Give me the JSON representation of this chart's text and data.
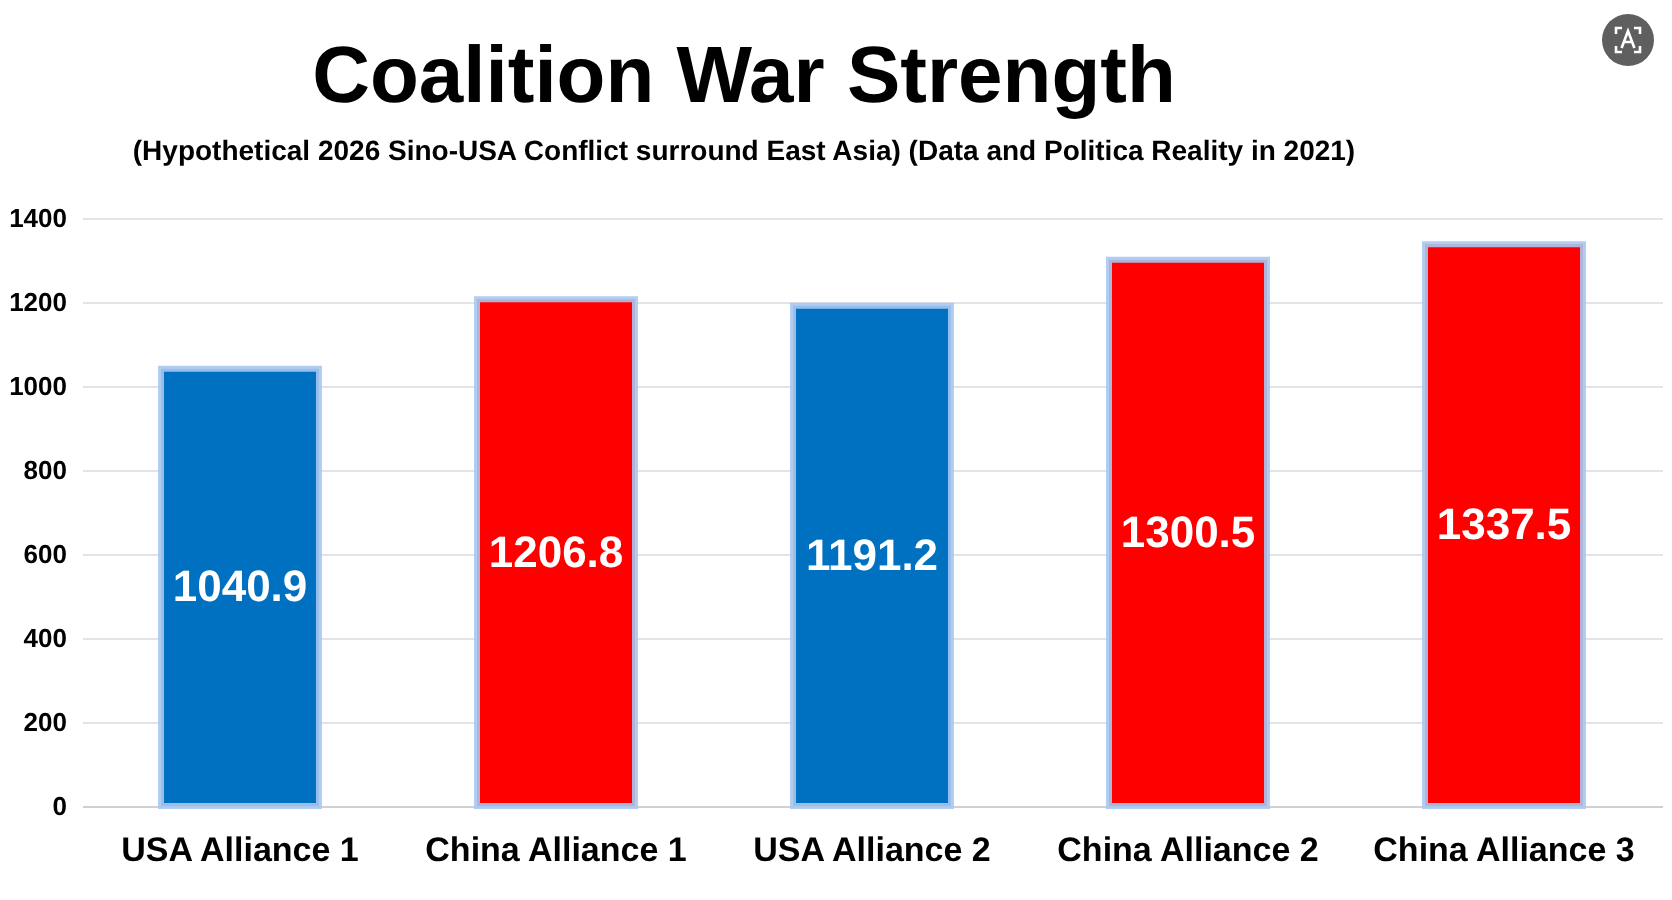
{
  "chart_data": {
    "type": "bar",
    "title": "Coalition War Strength",
    "subtitle": "(Hypothetical 2026 Sino-USA Conflict surround East Asia)  (Data and Politica Reality in 2021)",
    "categories": [
      "USA Alliance 1",
      "China Alliance 1",
      "USA Alliance 2",
      "China Alliance 2",
      "China Alliance 3"
    ],
    "values": [
      1040.9,
      1206.8,
      1191.2,
      1300.5,
      1337.5
    ],
    "colors": [
      "#0070c0",
      "#ff0000",
      "#0070c0",
      "#ff0000",
      "#ff0000"
    ],
    "ylim": [
      0,
      1400
    ],
    "yticks": [
      0,
      200,
      400,
      600,
      800,
      1000,
      1200,
      1400
    ],
    "grid": "y",
    "data_labels": true
  }
}
